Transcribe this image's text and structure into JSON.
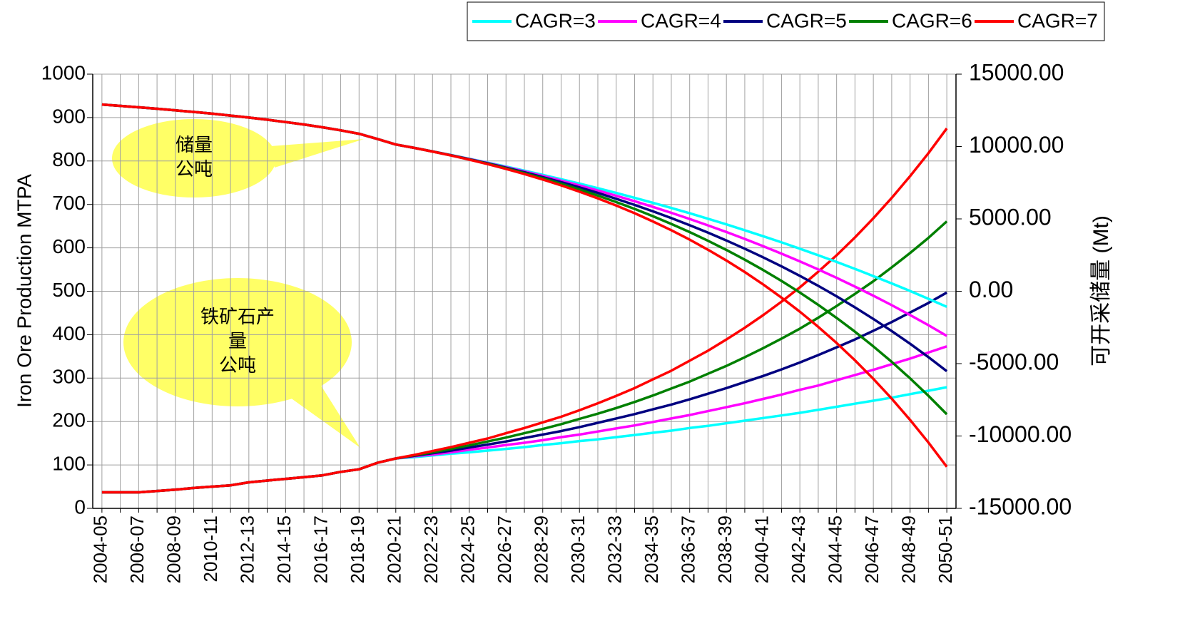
{
  "chart_data": {
    "type": "line",
    "y_label": "Iron Ore Production MTPA",
    "y2_label": "可开采储量 (Mt)",
    "categories": [
      "2004-05",
      null,
      "2006-07",
      null,
      "2008-09",
      null,
      "2010-11",
      null,
      "2012-13",
      null,
      "2014-15",
      null,
      "2016-17",
      null,
      "2018-19",
      null,
      "2020-21",
      null,
      "2022-23",
      null,
      "2024-25",
      null,
      "2026-27",
      null,
      "2028-29",
      null,
      "2030-31",
      null,
      "2032-33",
      null,
      "2034-35",
      null,
      "2036-37",
      null,
      "2038-39",
      null,
      "2040-41",
      null,
      "2042-43",
      null,
      "2044-45",
      null,
      "2046-47",
      null,
      "2048-49",
      null,
      "2050-51"
    ],
    "series": [
      {
        "name": "CAGR=3",
        "color": "#00ffff",
        "values": [
          37,
          37,
          37,
          40,
          43,
          47,
          50,
          53,
          60,
          64,
          68,
          72,
          76,
          84,
          90,
          105,
          115,
          118,
          122,
          126,
          129,
          133,
          137,
          141,
          146,
          150,
          155,
          159,
          164,
          169,
          174,
          179,
          185,
          190,
          196,
          202,
          208,
          214,
          220,
          227,
          234,
          241,
          248,
          255,
          263,
          271,
          279
        ]
      },
      {
        "name": "CAGR=4",
        "color": "#ff00ff",
        "values": [
          37,
          37,
          37,
          40,
          43,
          47,
          50,
          53,
          60,
          64,
          68,
          72,
          76,
          84,
          90,
          105,
          115,
          120,
          124,
          129,
          135,
          140,
          146,
          151,
          157,
          164,
          170,
          177,
          184,
          191,
          199,
          207,
          215,
          224,
          233,
          242,
          252,
          262,
          273,
          283,
          295,
          307,
          319,
          332,
          345,
          359,
          373
        ]
      },
      {
        "name": "CAGR=5",
        "color": "#000080",
        "values": [
          37,
          37,
          37,
          40,
          43,
          47,
          50,
          53,
          60,
          64,
          68,
          72,
          76,
          84,
          90,
          105,
          115,
          121,
          127,
          133,
          140,
          147,
          154,
          162,
          170,
          178,
          187,
          197,
          207,
          217,
          228,
          239,
          251,
          264,
          277,
          291,
          305,
          320,
          336,
          353,
          371,
          389,
          409,
          429,
          451,
          473,
          497
        ]
      },
      {
        "name": "CAGR=6",
        "color": "#008000",
        "values": [
          37,
          37,
          37,
          40,
          43,
          47,
          50,
          53,
          60,
          64,
          68,
          72,
          76,
          84,
          90,
          105,
          115,
          122,
          129,
          137,
          145,
          154,
          163,
          173,
          183,
          194,
          206,
          218,
          231,
          245,
          260,
          276,
          292,
          310,
          328,
          348,
          369,
          391,
          414,
          439,
          466,
          494,
          523,
          555,
          588,
          623,
          661
        ]
      },
      {
        "name": "CAGR=7",
        "color": "#ff0000",
        "values": [
          37,
          37,
          37,
          40,
          43,
          47,
          50,
          53,
          60,
          64,
          68,
          72,
          76,
          84,
          90,
          105,
          115,
          123,
          132,
          141,
          151,
          161,
          173,
          185,
          198,
          211,
          226,
          242,
          259,
          277,
          297,
          317,
          340,
          363,
          389,
          416,
          445,
          476,
          509,
          545,
          583,
          624,
          668,
          715,
          765,
          818,
          875
        ]
      },
      {
        "color": "#00ffff",
        "axis": "y2",
        "values": [
          12900,
          12810,
          12710,
          12610,
          12500,
          12390,
          12270,
          12140,
          12000,
          11850,
          11690,
          11520,
          11330,
          11120,
          10880,
          10520,
          10140,
          9904,
          9661,
          9412,
          9154,
          8888,
          8615,
          8333,
          8043,
          7745,
          7438,
          7121,
          6794,
          6458,
          6112,
          5755,
          5388,
          5010,
          4620,
          4219,
          3805,
          3379,
          2941,
          2489,
          2024,
          1545,
          1051,
          543,
          19,
          -521,
          -1076
        ]
      },
      {
        "color": "#ff00ff",
        "axis": "y2",
        "values": [
          12900,
          12810,
          12710,
          12610,
          12500,
          12390,
          12270,
          12140,
          12000,
          11850,
          11690,
          11520,
          11330,
          11120,
          10880,
          10520,
          10140,
          9904,
          9659,
          9404,
          9139,
          8863,
          8576,
          8278,
          7968,
          7645,
          7310,
          6960,
          6598,
          6220,
          5828,
          5420,
          4995,
          4553,
          4094,
          3617,
          3120,
          2603,
          2066,
          1507,
          926,
          322,
          -307,
          -960,
          -1640,
          -2347,
          -3082
        ]
      },
      {
        "color": "#000080",
        "axis": "y2",
        "values": [
          12900,
          12810,
          12710,
          12610,
          12500,
          12390,
          12270,
          12140,
          12000,
          11850,
          11690,
          11520,
          11330,
          11120,
          10880,
          10520,
          10140,
          9904,
          9657,
          9397,
          9124,
          8837,
          8536,
          8221,
          7889,
          7541,
          7175,
          6791,
          6387,
          5964,
          5520,
          5053,
          4563,
          4048,
          3508,
          2940,
          2345,
          1719,
          1062,
          373,
          -351,
          -1112,
          -1910,
          -2748,
          -3628,
          -4552,
          -5523
        ]
      },
      {
        "color": "#008000",
        "axis": "y2",
        "values": [
          12900,
          12810,
          12710,
          12610,
          12500,
          12390,
          12270,
          12140,
          12000,
          11850,
          11690,
          11520,
          11330,
          11120,
          10880,
          10520,
          10140,
          9904,
          9654,
          9390,
          9109,
          8811,
          8496,
          8161,
          7807,
          7431,
          7033,
          6610,
          6163,
          5689,
          5186,
          4652,
          4087,
          3489,
          2854,
          2181,
          1468,
          712,
          -90,
          -939,
          -1840,
          -2795,
          -3806,
          -4879,
          -6016,
          -7221,
          -8498
        ]
      },
      {
        "color": "#ff0000",
        "axis": "y2",
        "values": [
          12900,
          12810,
          12710,
          12610,
          12500,
          12390,
          12270,
          12140,
          12000,
          11850,
          11690,
          11520,
          11330,
          11120,
          10880,
          10520,
          10140,
          9904,
          9652,
          9382,
          9093,
          8784,
          8454,
          8100,
          7721,
          7316,
          6883,
          6419,
          5923,
          5392,
          4824,
          4216,
          3565,
          2869,
          2125,
          1328,
          475,
          -437,
          -1413,
          -2458,
          -3576,
          -4771,
          -6051,
          -7420,
          -8885,
          -10453,
          -12130
        ]
      }
    ],
    "ylim": [
      0,
      1000
    ],
    "yticks": [
      0,
      100,
      200,
      300,
      400,
      500,
      600,
      700,
      800,
      900,
      1000
    ],
    "y2lim": [
      -15000,
      15000
    ],
    "y2ticks": [
      {
        "value": -15000,
        "label": "-15000.00"
      },
      {
        "value": -10000,
        "label": "-10000.00"
      },
      {
        "value": -5000,
        "label": "-5000.00"
      },
      {
        "value": 0,
        "label": "0.00"
      },
      {
        "value": 5000,
        "label": "5000.00"
      },
      {
        "value": 10000,
        "label": "10000.00"
      },
      {
        "value": 15000,
        "label": "15000.00"
      }
    ],
    "grid": true,
    "legend": "top-right",
    "annotations": [
      {
        "lines": [
          "储量",
          "公吨"
        ]
      },
      {
        "lines": [
          "铁矿石产",
          "量",
          "公吨"
        ]
      }
    ]
  }
}
